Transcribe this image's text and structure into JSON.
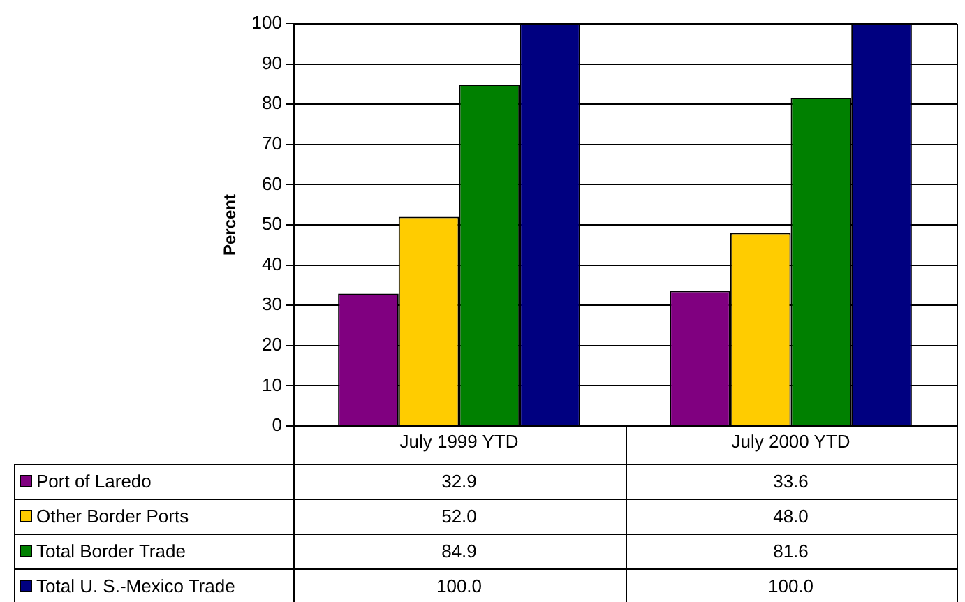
{
  "chart_data": {
    "type": "bar",
    "ylabel": "Percent",
    "categories": [
      "July 1999 YTD",
      "July 2000 YTD"
    ],
    "series": [
      {
        "name": "Port of Laredo",
        "color": "#800080",
        "values": [
          32.9,
          33.6
        ],
        "value_labels": [
          "32.9",
          "33.6"
        ]
      },
      {
        "name": "Other Border Ports",
        "color": "#ffcc00",
        "values": [
          52.0,
          48.0
        ],
        "value_labels": [
          "52.0",
          "48.0"
        ]
      },
      {
        "name": "Total Border Trade",
        "color": "#008000",
        "values": [
          84.9,
          81.6
        ],
        "value_labels": [
          "84.9",
          "81.6"
        ]
      },
      {
        "name": "Total U. S.-Mexico Trade",
        "color": "#000080",
        "values": [
          100.0,
          100.0
        ],
        "value_labels": [
          "100.0",
          "100.0"
        ]
      }
    ],
    "ylim": [
      0,
      100
    ],
    "yticks": [
      0,
      10,
      20,
      30,
      40,
      50,
      60,
      70,
      80,
      90,
      100
    ],
    "grid": "y",
    "legend": "bottom"
  }
}
